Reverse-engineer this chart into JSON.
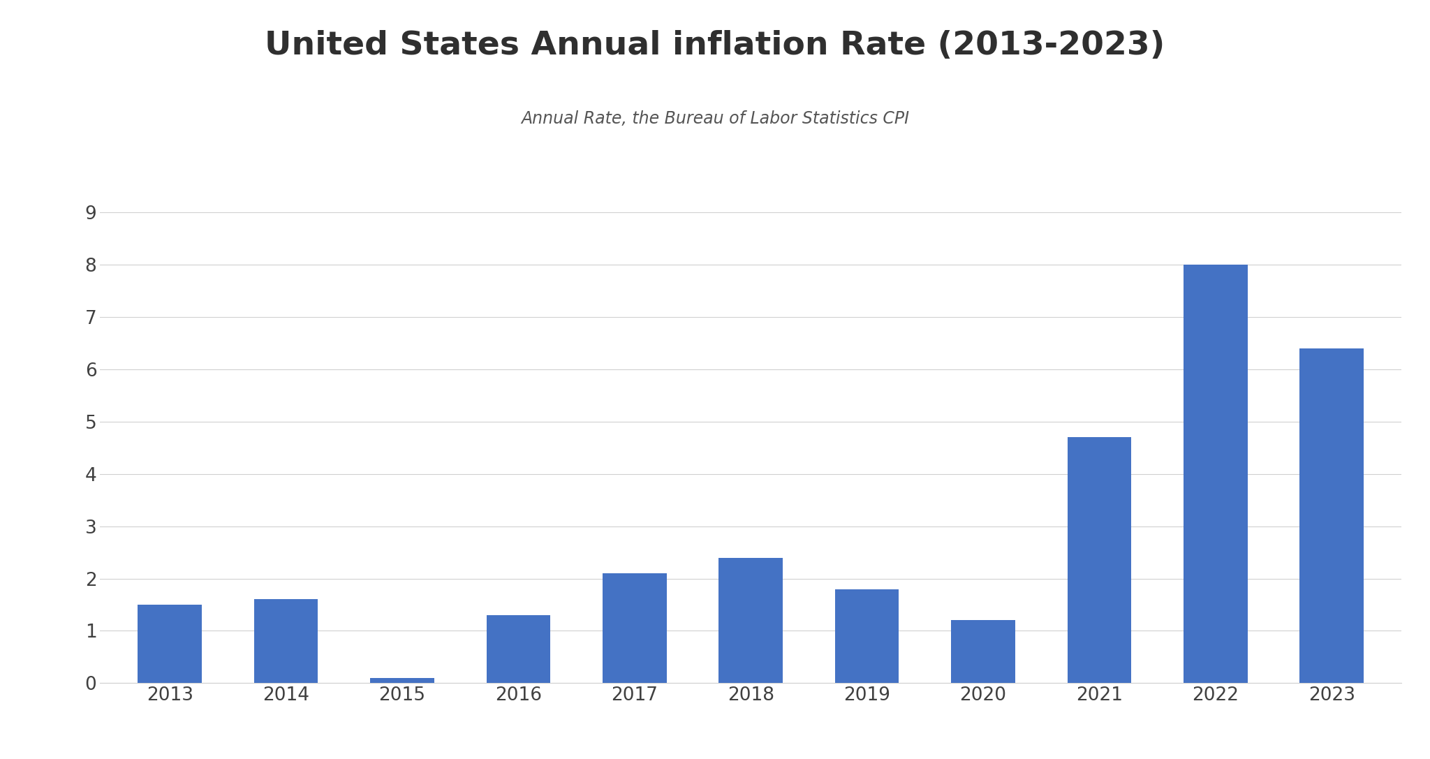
{
  "title": "United States Annual inflation Rate (2013-2023)",
  "subtitle": "Annual Rate, the Bureau of Labor Statistics CPI",
  "categories": [
    "2013",
    "2014",
    "2015",
    "2016",
    "2017",
    "2018",
    "2019",
    "2020",
    "2021",
    "2022",
    "2023"
  ],
  "values": [
    1.5,
    1.6,
    0.1,
    1.3,
    2.1,
    2.4,
    1.8,
    1.2,
    4.7,
    8.0,
    6.4
  ],
  "ylim": [
    0,
    9
  ],
  "yticks": [
    0,
    1,
    2,
    3,
    4,
    5,
    6,
    7,
    8,
    9
  ],
  "background_color": "#ffffff",
  "title_fontsize": 34,
  "subtitle_fontsize": 17,
  "tick_fontsize": 19,
  "title_color": "#2f2f2f",
  "subtitle_color": "#555555",
  "tick_color": "#404040",
  "grid_color": "#d0d0d0",
  "bar_color": "#4472C4",
  "bar_width": 0.55
}
